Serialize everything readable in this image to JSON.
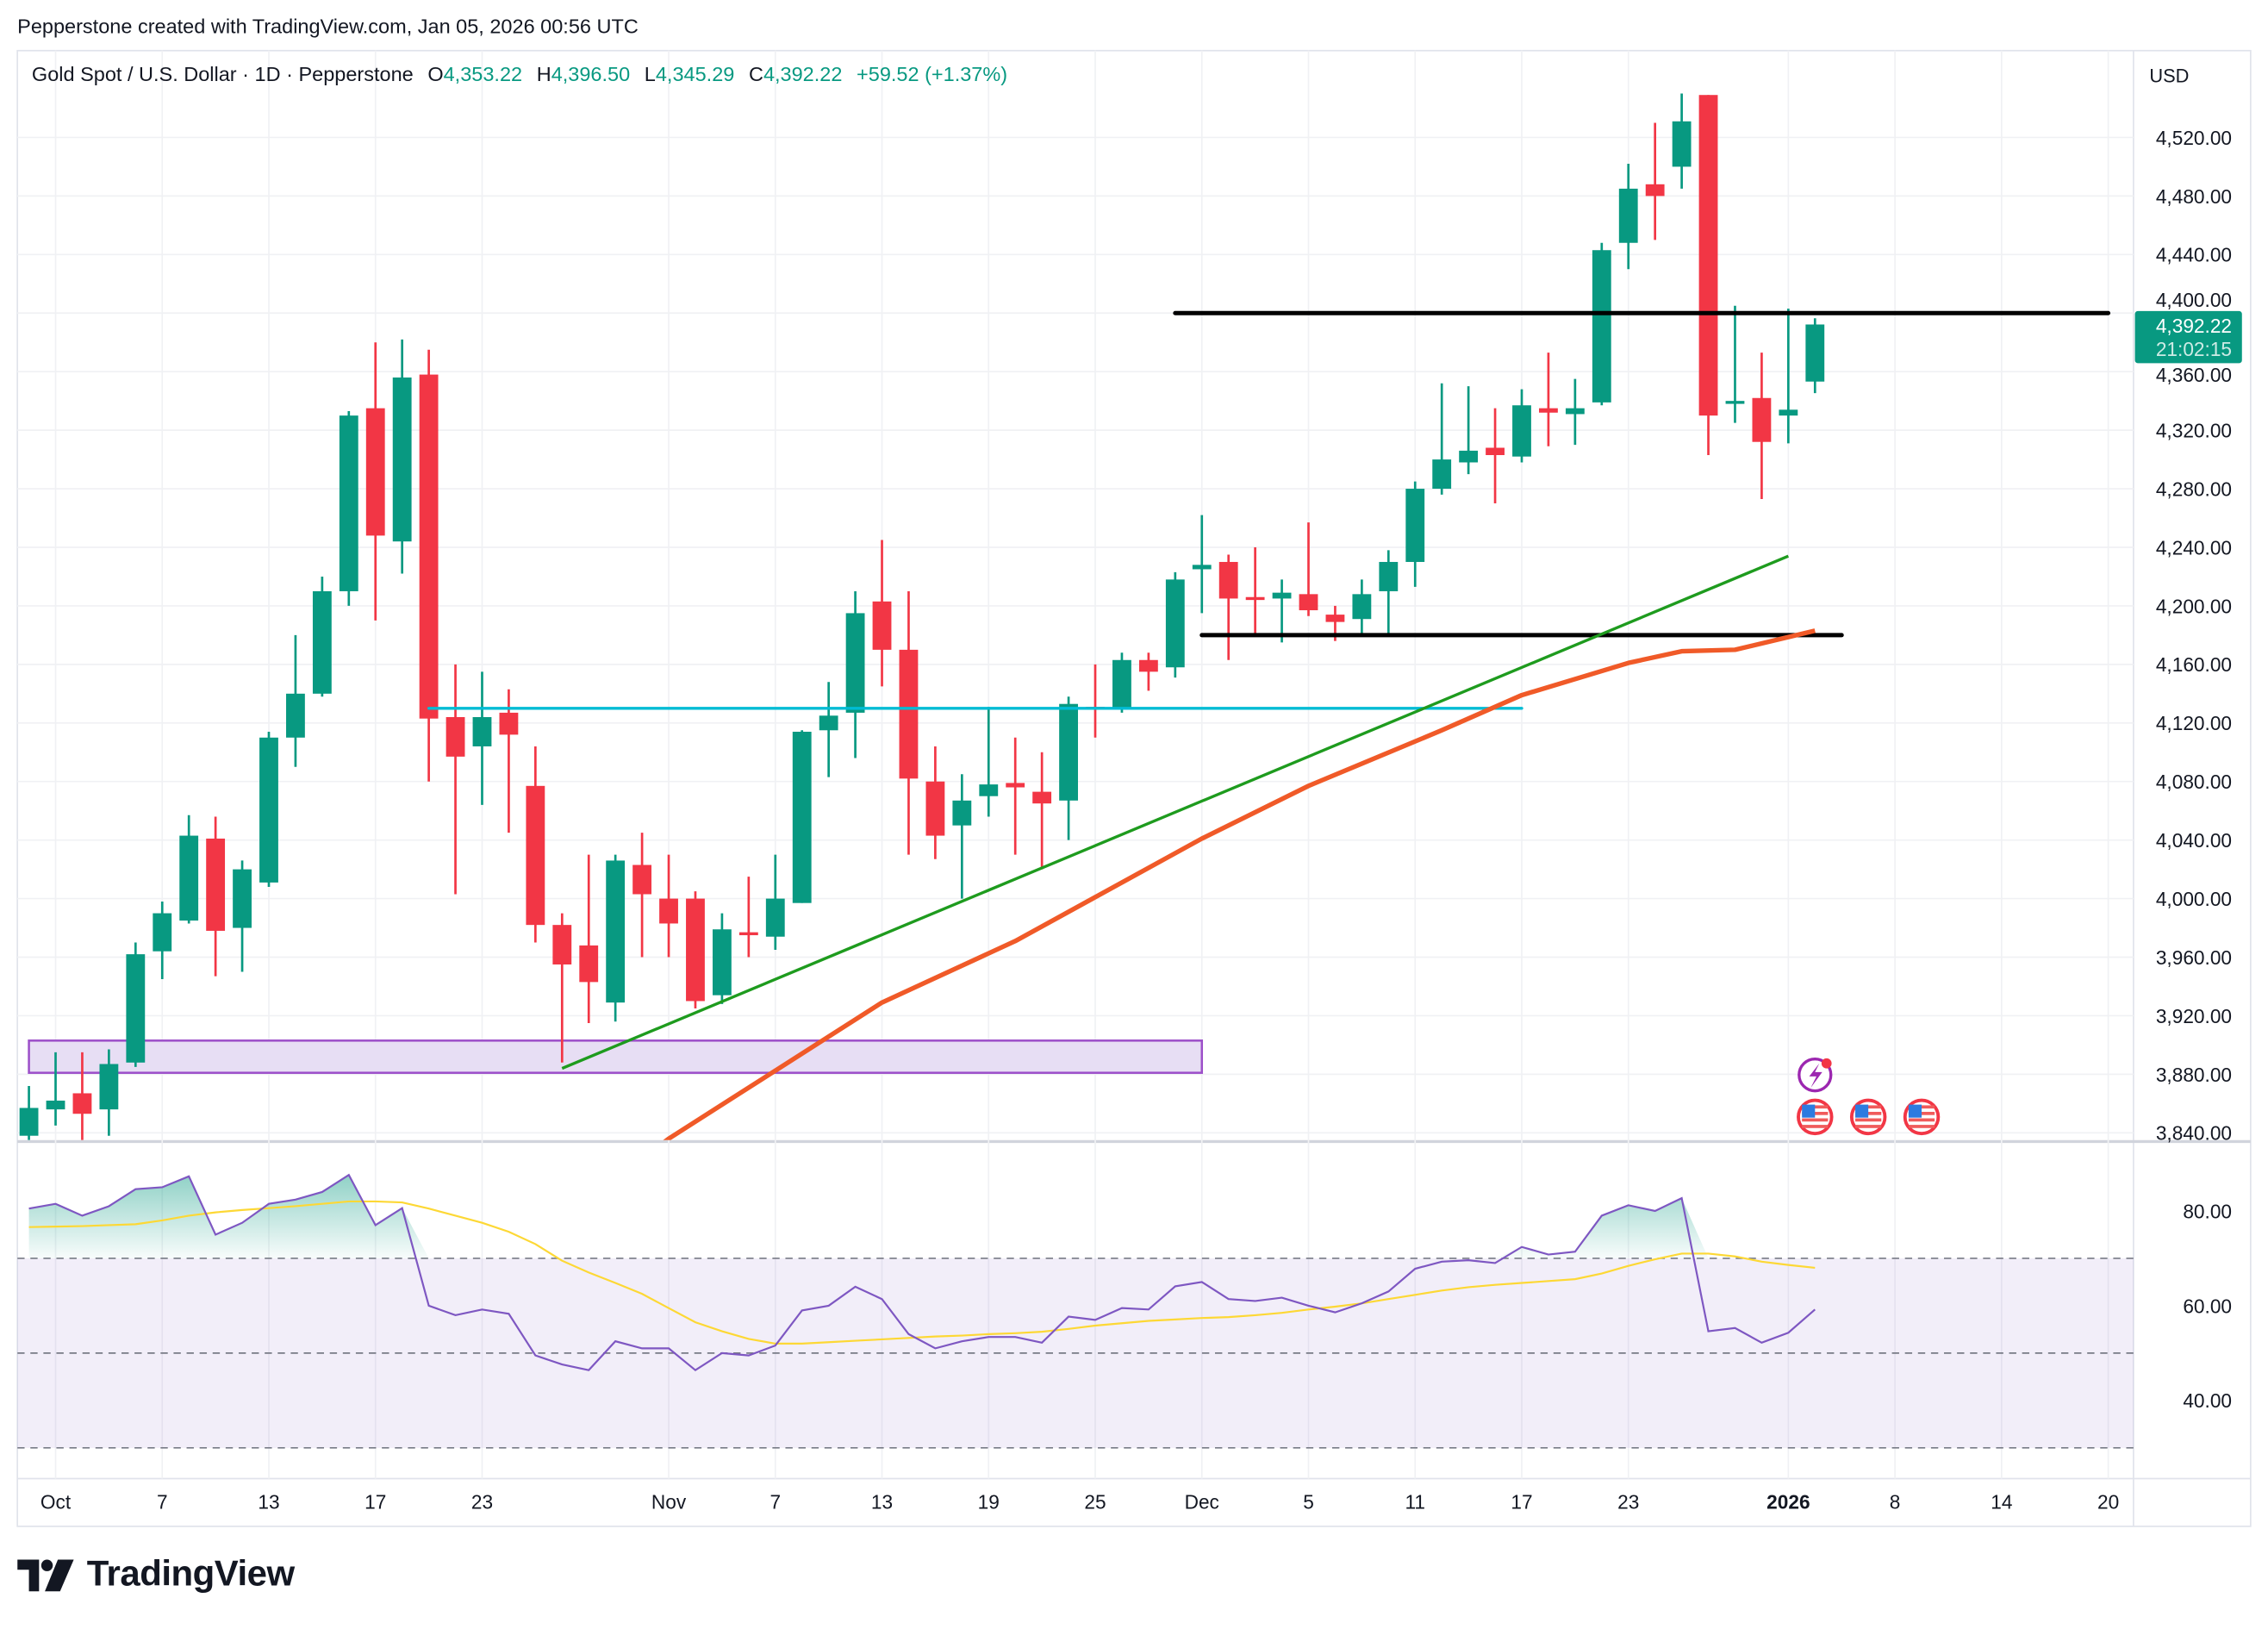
{
  "attribution": "Pepperstone created with TradingView.com, Jan 05, 2026 00:56 UTC",
  "legend": {
    "symbol": "Gold Spot / U.S. Dollar · 1D · Pepperstone",
    "open_label": "O",
    "open": "4,353.22",
    "high_label": "H",
    "high": "4,396.50",
    "low_label": "L",
    "low": "4,345.29",
    "close_label": "C",
    "close": "4,392.22",
    "change": "+59.52 (+1.37%)"
  },
  "price_scale": {
    "currency": "USD",
    "last_price": "4,392.22",
    "countdown": "21:02:15"
  },
  "logo": {
    "text": "TradingView"
  },
  "colors": {
    "up": "#089981",
    "down": "#f23645",
    "cyan_line": "#00bcd4",
    "trendline": "#1e9b1e",
    "moving_average": "#f05a28",
    "zone_fill": "#e7def4",
    "zone_stroke": "#9c4fc9",
    "rsi": "#7e57c2",
    "rsi_ma": "#fdd835",
    "level_line": "#000000"
  },
  "chart_data": {
    "type": "candlestick",
    "title": "Gold Spot / U.S. Dollar · 1D · Pepperstone",
    "ylim": [
      3830,
      4580
    ],
    "yticks": [
      4520,
      4480,
      4440,
      4400,
      4360,
      4320,
      4280,
      4240,
      4200,
      4160,
      4120,
      4080,
      4040,
      4000,
      3960,
      3920,
      3880,
      3840
    ],
    "xticks": [
      {
        "label": "Oct",
        "date": "2025-10-01"
      },
      {
        "label": "7",
        "date": "2025-10-07"
      },
      {
        "label": "13",
        "date": "2025-10-13"
      },
      {
        "label": "17",
        "date": "2025-10-17"
      },
      {
        "label": "23",
        "date": "2025-10-23"
      },
      {
        "label": "Nov",
        "date": "2025-11-03"
      },
      {
        "label": "7",
        "date": "2025-11-07"
      },
      {
        "label": "13",
        "date": "2025-11-13"
      },
      {
        "label": "19",
        "date": "2025-11-19"
      },
      {
        "label": "25",
        "date": "2025-11-25"
      },
      {
        "label": "Dec",
        "date": "2025-12-01"
      },
      {
        "label": "5",
        "date": "2025-12-05"
      },
      {
        "label": "11",
        "date": "2025-12-11"
      },
      {
        "label": "17",
        "date": "2025-12-17"
      },
      {
        "label": "23",
        "date": "2025-12-23"
      },
      {
        "label": "2026",
        "date": "2026-01-02",
        "bold": true
      },
      {
        "label": "8",
        "date": "2026-01-08"
      },
      {
        "label": "14",
        "date": "2026-01-14"
      },
      {
        "label": "20",
        "date": "2026-01-20"
      }
    ],
    "candles_format": [
      "date",
      "open",
      "high",
      "low",
      "close"
    ],
    "candles": [
      [
        "2025-09-30",
        3838,
        3872,
        3835,
        3857
      ],
      [
        "2025-10-01",
        3856,
        3895,
        3845,
        3862
      ],
      [
        "2025-10-02",
        3867,
        3895,
        3835,
        3853
      ],
      [
        "2025-10-03",
        3856,
        3897,
        3838,
        3887
      ],
      [
        "2025-10-06",
        3888,
        3970,
        3885,
        3962
      ],
      [
        "2025-10-07",
        3964,
        3998,
        3945,
        3990
      ],
      [
        "2025-10-08",
        3985,
        4057,
        3983,
        4043
      ],
      [
        "2025-10-09",
        4041,
        4056,
        3947,
        3978
      ],
      [
        "2025-10-10",
        3980,
        4026,
        3950,
        4020
      ],
      [
        "2025-10-13",
        4011,
        4114,
        4008,
        4110
      ],
      [
        "2025-10-14",
        4110,
        4180,
        4090,
        4140
      ],
      [
        "2025-10-15",
        4140,
        4220,
        4138,
        4210
      ],
      [
        "2025-10-16",
        4210,
        4333,
        4200,
        4330
      ],
      [
        "2025-10-17",
        4335,
        4380,
        4190,
        4248
      ],
      [
        "2025-10-20",
        4244,
        4382,
        4222,
        4356
      ],
      [
        "2025-10-21",
        4358,
        4375,
        4080,
        4123
      ],
      [
        "2025-10-22",
        4124,
        4160,
        4003,
        4097
      ],
      [
        "2025-10-23",
        4104,
        4155,
        4064,
        4124
      ],
      [
        "2025-10-24",
        4127,
        4143,
        4045,
        4112
      ],
      [
        "2025-10-27",
        4077,
        4104,
        3970,
        3982
      ],
      [
        "2025-10-28",
        3982,
        3990,
        3888,
        3955
      ],
      [
        "2025-10-29",
        3968,
        4030,
        3915,
        3943
      ],
      [
        "2025-10-30",
        3929,
        4030,
        3916,
        4026
      ],
      [
        "2025-10-31",
        4023,
        4045,
        3960,
        4003
      ],
      [
        "2025-11-03",
        4000,
        4030,
        3960,
        3983
      ],
      [
        "2025-11-04",
        4000,
        4005,
        3925,
        3930
      ],
      [
        "2025-11-05",
        3934,
        3990,
        3928,
        3979
      ],
      [
        "2025-11-06",
        3977,
        4015,
        3960,
        3975
      ],
      [
        "2025-11-07",
        3974,
        4030,
        3965,
        4000
      ],
      [
        "2025-11-10",
        3997,
        4115,
        3997,
        4114
      ],
      [
        "2025-11-11",
        4115,
        4148,
        4083,
        4125
      ],
      [
        "2025-11-12",
        4127,
        4210,
        4096,
        4195
      ],
      [
        "2025-11-13",
        4203,
        4245,
        4145,
        4170
      ],
      [
        "2025-11-14",
        4170,
        4210,
        4030,
        4082
      ],
      [
        "2025-11-17",
        4080,
        4104,
        4027,
        4043
      ],
      [
        "2025-11-18",
        4050,
        4085,
        4000,
        4067
      ],
      [
        "2025-11-19",
        4070,
        4131,
        4056,
        4078
      ],
      [
        "2025-11-20",
        4079,
        4110,
        4030,
        4076
      ],
      [
        "2025-11-21",
        4073,
        4100,
        4020,
        4065
      ],
      [
        "2025-11-24",
        4067,
        4138,
        4040,
        4133
      ],
      [
        "2025-11-25",
        4131,
        4160,
        4110,
        4129
      ],
      [
        "2025-11-26",
        4130,
        4168,
        4127,
        4163
      ],
      [
        "2025-11-27",
        4163,
        4168,
        4142,
        4155
      ],
      [
        "2025-11-28",
        4158,
        4223,
        4151,
        4218
      ],
      [
        "2025-12-01",
        4225,
        4262,
        4195,
        4228
      ],
      [
        "2025-12-02",
        4230,
        4235,
        4163,
        4205
      ],
      [
        "2025-12-03",
        4206,
        4240,
        4180,
        4204
      ],
      [
        "2025-12-04",
        4205,
        4218,
        4175,
        4209
      ],
      [
        "2025-12-05",
        4208,
        4257,
        4193,
        4197
      ],
      [
        "2025-12-08",
        4194,
        4200,
        4176,
        4189
      ],
      [
        "2025-12-09",
        4191,
        4218,
        4180,
        4208
      ],
      [
        "2025-12-10",
        4210,
        4238,
        4181,
        4230
      ],
      [
        "2025-12-11",
        4230,
        4285,
        4213,
        4280
      ],
      [
        "2025-12-12",
        4280,
        4352,
        4276,
        4300
      ],
      [
        "2025-12-15",
        4298,
        4350,
        4290,
        4306
      ],
      [
        "2025-12-16",
        4308,
        4335,
        4270,
        4303
      ],
      [
        "2025-12-17",
        4302,
        4348,
        4298,
        4337
      ],
      [
        "2025-12-18",
        4335,
        4373,
        4309,
        4332
      ],
      [
        "2025-12-19",
        4331,
        4355,
        4310,
        4335
      ],
      [
        "2025-12-22",
        4339,
        4448,
        4337,
        4443
      ],
      [
        "2025-12-23",
        4448,
        4502,
        4430,
        4485
      ],
      [
        "2025-12-24",
        4488,
        4530,
        4450,
        4480
      ],
      [
        "2025-12-26",
        4500,
        4550,
        4485,
        4531
      ],
      [
        "2025-12-29",
        4549,
        4549,
        4303,
        4330
      ],
      [
        "2025-12-30",
        4338,
        4405,
        4325,
        4340
      ],
      [
        "2025-12-31",
        4342,
        4373,
        4273,
        4312
      ],
      [
        "2026-01-02",
        4330,
        4403,
        4311,
        4334
      ],
      [
        "2026-01-05",
        4353.22,
        4396.5,
        4345.29,
        4392.22
      ]
    ],
    "moving_average": [
      [
        "2025-10-31",
        3822
      ],
      [
        "2025-11-03",
        3836
      ],
      [
        "2025-11-13",
        3929
      ],
      [
        "2025-11-20",
        3971
      ],
      [
        "2025-11-25",
        4001
      ],
      [
        "2025-12-01",
        4041
      ],
      [
        "2025-12-05",
        4077
      ],
      [
        "2025-12-12",
        4115
      ],
      [
        "2025-12-17",
        4139
      ],
      [
        "2025-12-23",
        4161
      ],
      [
        "2025-12-26",
        4169
      ],
      [
        "2025-12-30",
        4170
      ],
      [
        "2026-01-05",
        4183
      ]
    ],
    "drawings": {
      "horizontal_levels": [
        {
          "price": 4400,
          "from": "2025-11-28",
          "to": "2026-01-20",
          "color": "#000000"
        },
        {
          "price": 4180,
          "from": "2025-12-01",
          "to": "2026-01-06",
          "color": "#000000"
        },
        {
          "price": 4130,
          "from": "2025-10-21",
          "to": "2025-12-17",
          "color": "#00bcd4"
        }
      ],
      "trendline": {
        "from": [
          "2025-10-28",
          3884
        ],
        "to": [
          "2026-01-02",
          4234
        ]
      },
      "zone": {
        "from": "2025-09-30",
        "to": "2025-12-01",
        "top": 3903,
        "bottom": 3881
      }
    },
    "events": [
      {
        "date": "2026-01-05",
        "icon": "lightning-icon"
      },
      {
        "date": "2026-01-05",
        "icon": "us-flag-icon"
      },
      {
        "date": "2026-01-07",
        "icon": "us-flag-icon"
      },
      {
        "date": "2026-01-09",
        "icon": "us-flag-icon"
      }
    ],
    "rsi": {
      "yticks": [
        "80.00",
        "60.00",
        "40.00"
      ],
      "levels": [
        70,
        50,
        30
      ],
      "values": [
        80.5,
        81.5,
        79,
        81,
        84.6,
        85,
        87.3,
        75,
        77.5,
        81.5,
        82.4,
        84,
        87.6,
        77,
        80.6,
        60,
        58,
        59.2,
        58.3,
        49.5,
        47.6,
        46.4,
        52.5,
        51,
        51,
        46.4,
        50,
        49.5,
        51.6,
        59,
        60,
        64,
        61.4,
        54,
        51,
        52.5,
        53.4,
        53.4,
        52.2,
        57.7,
        57,
        59.5,
        59.2,
        64.1,
        65,
        61.4,
        61,
        61.7,
        60,
        58.6,
        60.5,
        63,
        67.8,
        69.3,
        69.6,
        69,
        72.4,
        70.8,
        71.4,
        79,
        81.2,
        80,
        82.7,
        54.6,
        55.3,
        52.2,
        54.3,
        59.2
      ],
      "ma": [
        76.6,
        76.7,
        76.8,
        77,
        77.2,
        78,
        79,
        79.7,
        80.2,
        80.6,
        81,
        81.5,
        82,
        82,
        81.8,
        80.5,
        79,
        77.5,
        75.6,
        73,
        69.5,
        67,
        64.8,
        62.5,
        59.5,
        56.5,
        54.6,
        53,
        52,
        52,
        52.3,
        52.6,
        52.9,
        53.2,
        53.5,
        53.7,
        54,
        54.2,
        54.5,
        55.1,
        55.8,
        56.3,
        56.8,
        57.1,
        57.4,
        57.6,
        58,
        58.5,
        59.2,
        59.8,
        60.5,
        61.4,
        62.3,
        63.2,
        63.9,
        64.4,
        64.8,
        65.2,
        65.6,
        66.8,
        68.4,
        69.8,
        71,
        71,
        70.4,
        69.3,
        68.6,
        68
      ]
    }
  }
}
